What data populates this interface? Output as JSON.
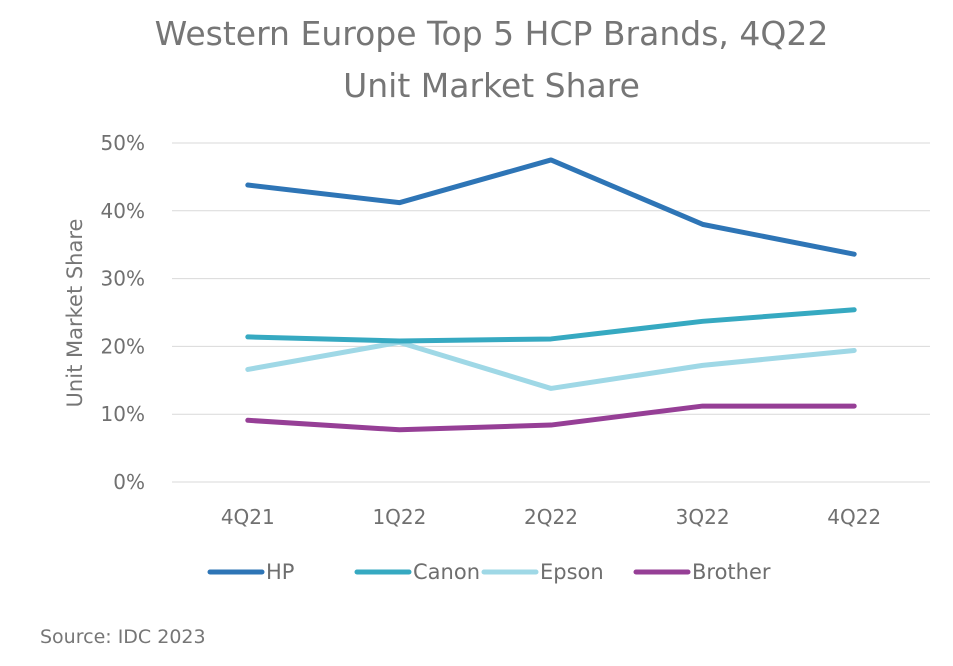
{
  "chart_data": {
    "type": "line",
    "title": "Western Europe Top 5 HCP Brands, 4Q22",
    "subtitle": "Unit Market Share",
    "xlabel": "",
    "ylabel": "Unit Market Share",
    "categories": [
      "4Q21",
      "1Q22",
      "2Q22",
      "3Q22",
      "4Q22"
    ],
    "ylim": [
      0,
      50
    ],
    "yticks": [
      "0%",
      "10%",
      "20%",
      "30%",
      "40%",
      "50%"
    ],
    "ytick_values": [
      0,
      10,
      20,
      30,
      40,
      50
    ],
    "grid": true,
    "legend_position": "bottom",
    "series": [
      {
        "name": "HP",
        "color": "#2e75b6",
        "values": [
          43.8,
          41.2,
          47.5,
          38.0,
          33.6
        ]
      },
      {
        "name": "Canon",
        "color": "#36a9c1",
        "values": [
          21.4,
          20.8,
          21.1,
          23.7,
          25.4
        ]
      },
      {
        "name": "Epson",
        "color": "#9fd8e6",
        "values": [
          16.6,
          20.6,
          13.8,
          17.2,
          19.4
        ]
      },
      {
        "name": "Brother",
        "color": "#963f96",
        "values": [
          9.1,
          7.7,
          8.4,
          11.2,
          11.2
        ]
      }
    ]
  },
  "source": "Source: IDC 2023"
}
